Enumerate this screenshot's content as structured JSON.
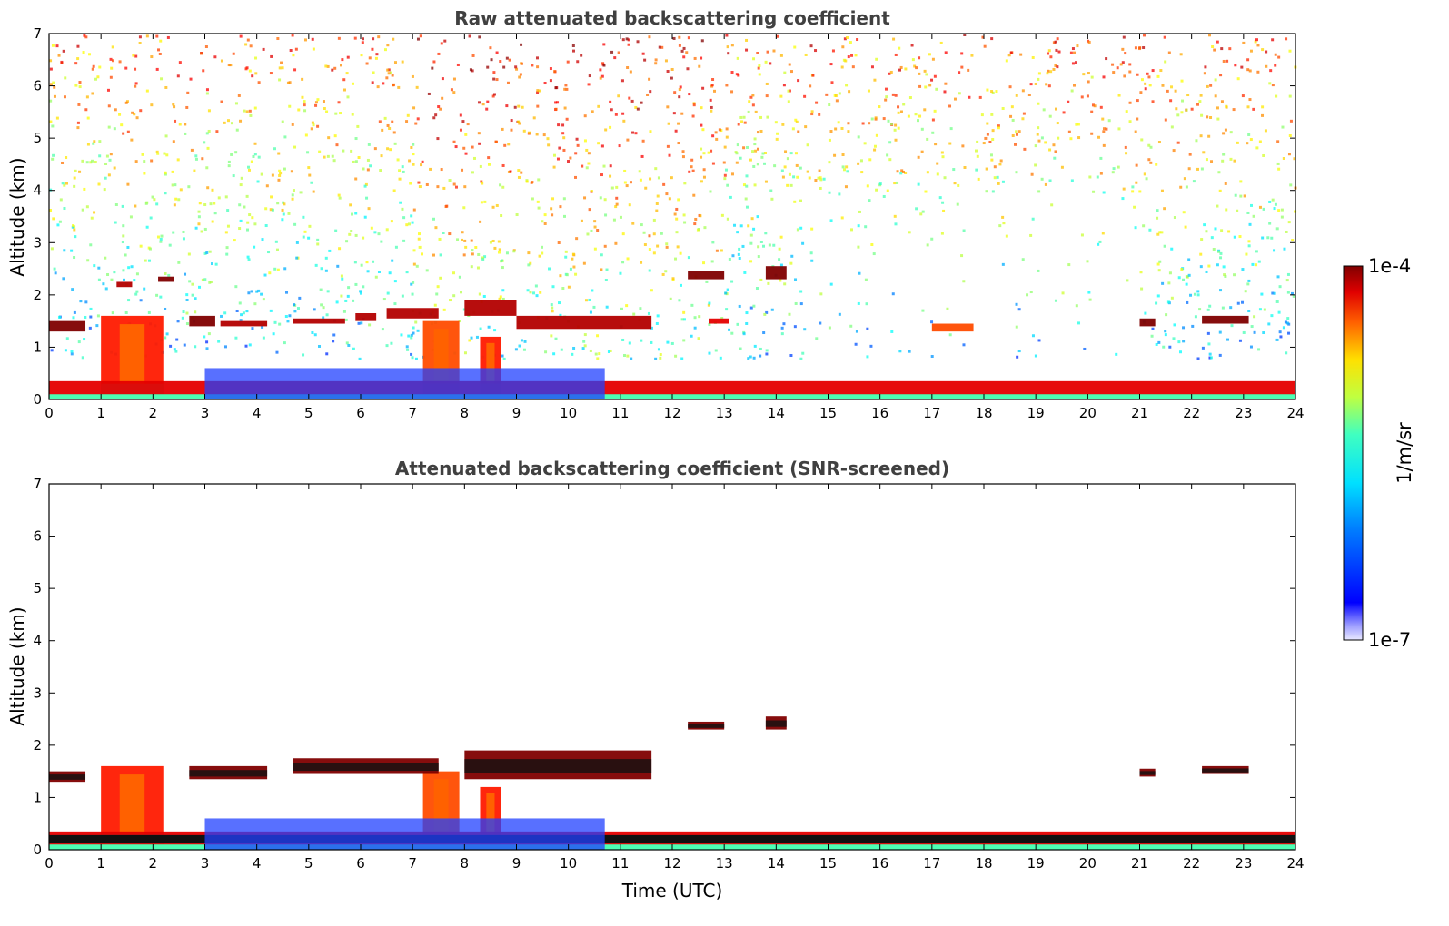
{
  "chart_data": [
    {
      "type": "heatmap",
      "title": "Raw attenuated backscattering coefficient",
      "xlabel": "",
      "ylabel": "Altitude (km)",
      "xlim": [
        0,
        24
      ],
      "ylim": [
        0,
        7
      ],
      "x_ticks": [
        "0",
        "1",
        "2",
        "3",
        "4",
        "5",
        "6",
        "7",
        "8",
        "9",
        "10",
        "11",
        "12",
        "13",
        "14",
        "15",
        "16",
        "17",
        "18",
        "19",
        "20",
        "21",
        "22",
        "23",
        "24"
      ],
      "y_ticks": [
        "0",
        "1",
        "2",
        "3",
        "4",
        "5",
        "6",
        "7"
      ],
      "features": [
        {
          "kind": "aerosol_column",
          "x": [
            1.0,
            2.2
          ],
          "y": [
            0,
            1.6
          ],
          "level": 0.85
        },
        {
          "kind": "aerosol_column",
          "x": [
            7.2,
            7.9
          ],
          "y": [
            0,
            1.5
          ],
          "level": 0.8
        },
        {
          "kind": "aerosol_column",
          "x": [
            8.3,
            8.7
          ],
          "y": [
            0,
            1.2
          ],
          "level": 0.85
        },
        {
          "kind": "cloud_layer",
          "x": [
            0.0,
            0.7
          ],
          "y": [
            1.3,
            1.5
          ],
          "level": 1.0
        },
        {
          "kind": "cloud_layer",
          "x": [
            2.7,
            3.2
          ],
          "y": [
            1.4,
            1.6
          ],
          "level": 1.0
        },
        {
          "kind": "cloud_layer",
          "x": [
            3.3,
            4.2
          ],
          "y": [
            1.4,
            1.5
          ],
          "level": 0.95
        },
        {
          "kind": "cloud_layer",
          "x": [
            4.7,
            5.7
          ],
          "y": [
            1.45,
            1.55
          ],
          "level": 0.95
        },
        {
          "kind": "cloud_layer",
          "x": [
            5.9,
            6.3
          ],
          "y": [
            1.5,
            1.65
          ],
          "level": 0.95
        },
        {
          "kind": "cloud_layer",
          "x": [
            6.5,
            7.5
          ],
          "y": [
            1.55,
            1.75
          ],
          "level": 0.95
        },
        {
          "kind": "cloud_layer",
          "x": [
            8.0,
            9.0
          ],
          "y": [
            1.6,
            1.9
          ],
          "level": 0.95
        },
        {
          "kind": "cloud_layer",
          "x": [
            9.0,
            11.6
          ],
          "y": [
            1.35,
            1.6
          ],
          "level": 0.95
        },
        {
          "kind": "cloud_layer",
          "x": [
            12.3,
            13.0
          ],
          "y": [
            2.3,
            2.45
          ],
          "level": 1.0
        },
        {
          "kind": "cloud_layer",
          "x": [
            13.8,
            14.2
          ],
          "y": [
            2.3,
            2.55
          ],
          "level": 1.0
        },
        {
          "kind": "cloud_layer",
          "x": [
            12.7,
            13.1
          ],
          "y": [
            1.45,
            1.55
          ],
          "level": 0.9
        },
        {
          "kind": "cloud_layer",
          "x": [
            21.0,
            21.3
          ],
          "y": [
            1.4,
            1.55
          ],
          "level": 1.0
        },
        {
          "kind": "cloud_layer",
          "x": [
            22.2,
            23.1
          ],
          "y": [
            1.45,
            1.6
          ],
          "level": 1.0
        },
        {
          "kind": "cloud_layer",
          "x": [
            17.0,
            17.8
          ],
          "y": [
            1.3,
            1.45
          ],
          "level": 0.8
        },
        {
          "kind": "cloud_layer",
          "x": [
            2.1,
            2.4
          ],
          "y": [
            2.25,
            2.35
          ],
          "level": 1.0
        },
        {
          "kind": "cloud_layer",
          "x": [
            1.3,
            1.6
          ],
          "y": [
            2.15,
            2.25
          ],
          "level": 0.95
        },
        {
          "kind": "boundary_layer",
          "x": [
            0.0,
            24.0
          ],
          "y": [
            0.0,
            0.35
          ],
          "level": 0.9
        },
        {
          "kind": "lofted_layer",
          "x": [
            3.0,
            10.7
          ],
          "y": [
            0.0,
            0.6
          ],
          "level": 0.35
        }
      ]
    },
    {
      "type": "heatmap",
      "title": "Attenuated backscattering coefficient (SNR-screened)",
      "xlabel": "Time (UTC)",
      "ylabel": "Altitude (km)",
      "xlim": [
        0,
        24
      ],
      "ylim": [
        0,
        7
      ],
      "x_ticks": [
        "0",
        "1",
        "2",
        "3",
        "4",
        "5",
        "6",
        "7",
        "8",
        "9",
        "10",
        "11",
        "12",
        "13",
        "14",
        "15",
        "16",
        "17",
        "18",
        "19",
        "20",
        "21",
        "22",
        "23",
        "24"
      ],
      "y_ticks": [
        "0",
        "1",
        "2",
        "3",
        "4",
        "5",
        "6",
        "7"
      ],
      "features": [
        {
          "kind": "aerosol_column",
          "x": [
            1.0,
            2.2
          ],
          "y": [
            0,
            1.6
          ],
          "level": 0.85
        },
        {
          "kind": "aerosol_column",
          "x": [
            7.2,
            7.9
          ],
          "y": [
            0,
            1.5
          ],
          "level": 0.8
        },
        {
          "kind": "aerosol_column",
          "x": [
            8.3,
            8.7
          ],
          "y": [
            0,
            1.2
          ],
          "level": 0.85
        },
        {
          "kind": "cloud_layer",
          "x": [
            0.0,
            0.7
          ],
          "y": [
            1.3,
            1.5
          ],
          "level": 1.0
        },
        {
          "kind": "cloud_layer",
          "x": [
            2.7,
            4.2
          ],
          "y": [
            1.35,
            1.6
          ],
          "level": 1.0
        },
        {
          "kind": "cloud_layer",
          "x": [
            4.7,
            7.5
          ],
          "y": [
            1.45,
            1.75
          ],
          "level": 1.0
        },
        {
          "kind": "cloud_layer",
          "x": [
            8.0,
            11.6
          ],
          "y": [
            1.35,
            1.9
          ],
          "level": 1.0
        },
        {
          "kind": "cloud_layer",
          "x": [
            12.3,
            13.0
          ],
          "y": [
            2.3,
            2.45
          ],
          "level": 1.0
        },
        {
          "kind": "cloud_layer",
          "x": [
            13.8,
            14.2
          ],
          "y": [
            2.3,
            2.55
          ],
          "level": 1.0
        },
        {
          "kind": "cloud_layer",
          "x": [
            21.0,
            21.3
          ],
          "y": [
            1.4,
            1.55
          ],
          "level": 1.0
        },
        {
          "kind": "cloud_layer",
          "x": [
            22.2,
            23.1
          ],
          "y": [
            1.45,
            1.6
          ],
          "level": 1.0
        },
        {
          "kind": "boundary_layer",
          "x": [
            0.0,
            24.0
          ],
          "y": [
            0.0,
            0.35
          ],
          "level": 0.9
        },
        {
          "kind": "lofted_layer",
          "x": [
            3.0,
            10.7
          ],
          "y": [
            0.0,
            0.6
          ],
          "level": 0.3
        }
      ]
    }
  ],
  "colorbar": {
    "label": "1/m/sr",
    "max_label": "1e-4",
    "min_label": "1e-7",
    "colormap": "jet",
    "scale": "log"
  }
}
